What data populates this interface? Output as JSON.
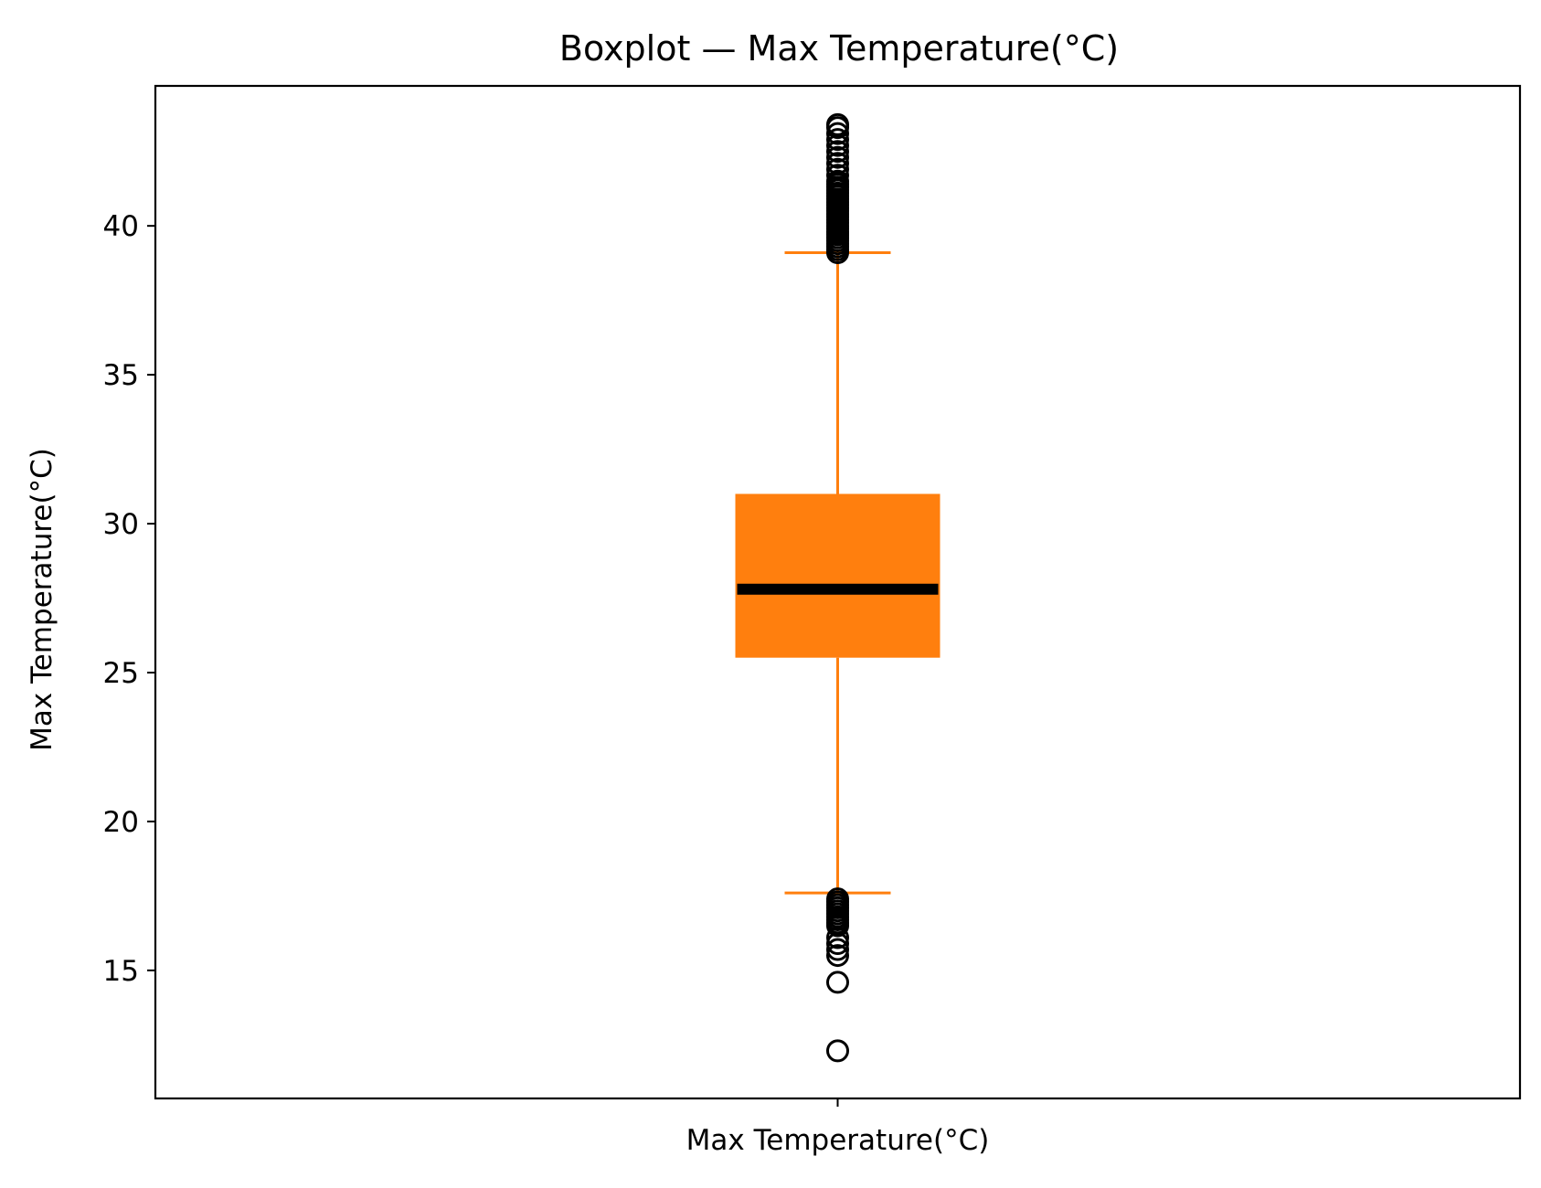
{
  "chart_data": {
    "type": "boxplot",
    "title": "Boxplot — Max Temperature(°C)",
    "xlabel": "",
    "ylabel": "Max Temperature(°C)",
    "categories": [
      "Max Temperature(°C)"
    ],
    "ylim": [
      10.7,
      44.7
    ],
    "yticks": [
      15,
      20,
      25,
      30,
      35,
      40
    ],
    "grid": false,
    "colors": {
      "box": "#ff7f0e",
      "whisker": "#ff7f0e",
      "median": "#000000",
      "flier": "#000000"
    },
    "boxes": [
      {
        "name": "Max Temperature(°C)",
        "whisker_low": 17.6,
        "q1": 25.5,
        "median": 27.8,
        "q3": 31.0,
        "whisker_high": 39.1,
        "fliers_high": [
          39.1,
          39.2,
          39.3,
          39.4,
          39.5,
          39.6,
          39.7,
          39.8,
          39.9,
          40.0,
          40.1,
          40.2,
          40.3,
          40.4,
          40.5,
          40.6,
          40.7,
          40.8,
          40.9,
          41.0,
          41.1,
          41.2,
          41.3,
          41.4,
          41.5,
          41.7,
          41.9,
          42.1,
          42.3,
          42.5,
          42.7,
          42.9,
          43.1,
          43.3,
          43.4
        ],
        "fliers_low": [
          17.4,
          17.3,
          17.2,
          17.1,
          17.0,
          16.9,
          16.8,
          16.7,
          16.6,
          16.5,
          16.1,
          15.9,
          15.7,
          15.5,
          14.6,
          12.3
        ]
      }
    ]
  }
}
